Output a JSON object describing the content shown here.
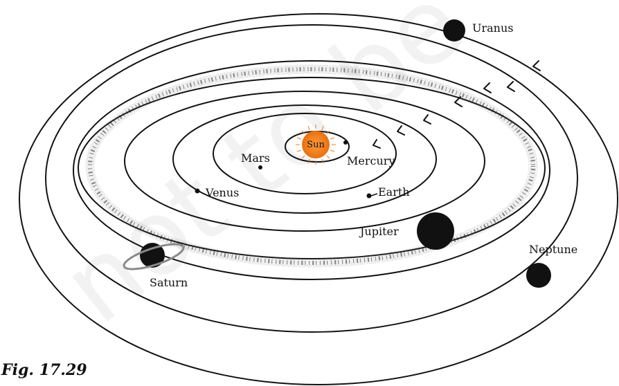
{
  "watermark": "not to be",
  "sun": {
    "label": "Sun",
    "color": "#f07a1a"
  },
  "planets": [
    {
      "key": "mercury",
      "label": "Mercury"
    },
    {
      "key": "venus",
      "label": "Venus"
    },
    {
      "key": "earth",
      "label": "Earth"
    },
    {
      "key": "mars",
      "label": "Mars"
    },
    {
      "key": "jupiter",
      "label": "Jupiter"
    },
    {
      "key": "saturn",
      "label": "Saturn"
    },
    {
      "key": "uranus",
      "label": "Uranus"
    },
    {
      "key": "neptune",
      "label": "Neptune"
    }
  ],
  "caption": "Fig. 17.29"
}
